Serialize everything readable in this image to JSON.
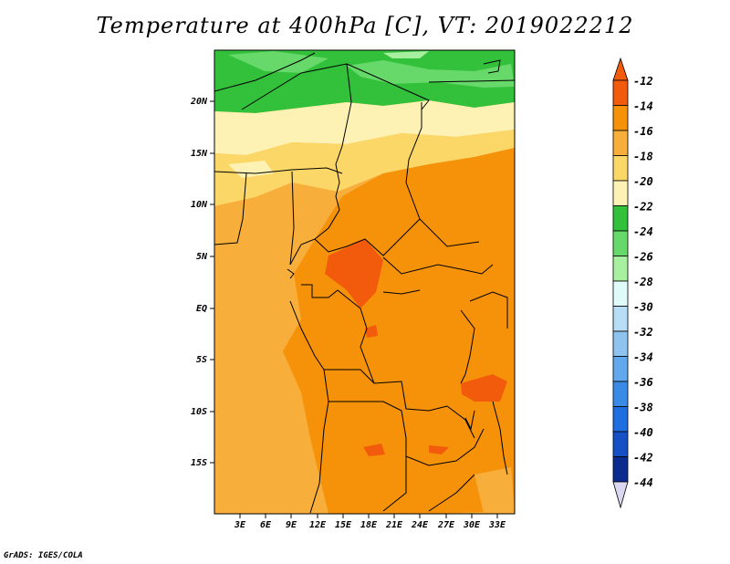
{
  "title": "Temperature at 400hPa [C], VT: 2019022212",
  "credit": "GrADS: IGES/COLA",
  "map": {
    "variable": "Temperature at 400hPa",
    "units": "C",
    "valid_time": "2019022212",
    "lat_labels": [
      "20N",
      "15N",
      "10N",
      "5N",
      "EQ",
      "5S",
      "10S",
      "15S"
    ],
    "lon_labels": [
      "3E",
      "6E",
      "9E",
      "12E",
      "15E",
      "18E",
      "21E",
      "24E",
      "27E",
      "30E",
      "33E"
    ]
  },
  "colorbar": {
    "labels": [
      "-12",
      "-14",
      "-16",
      "-18",
      "-20",
      "-22",
      "-24",
      "-26",
      "-28",
      "-30",
      "-32",
      "-34",
      "-36",
      "-38",
      "-40",
      "-42",
      "-44"
    ],
    "colors": [
      "#f25a0c",
      "#f5920a",
      "#f7ae3a",
      "#fbd768",
      "#fdf2b4",
      "#33c13c",
      "#67d96a",
      "#a6f0a0",
      "#dffaf8",
      "#b7dcf5",
      "#8ec3f0",
      "#61a8ec",
      "#3a8be6",
      "#1f6ee0",
      "#1550c5",
      "#0b2c8f",
      "#dad8f0"
    ]
  }
}
